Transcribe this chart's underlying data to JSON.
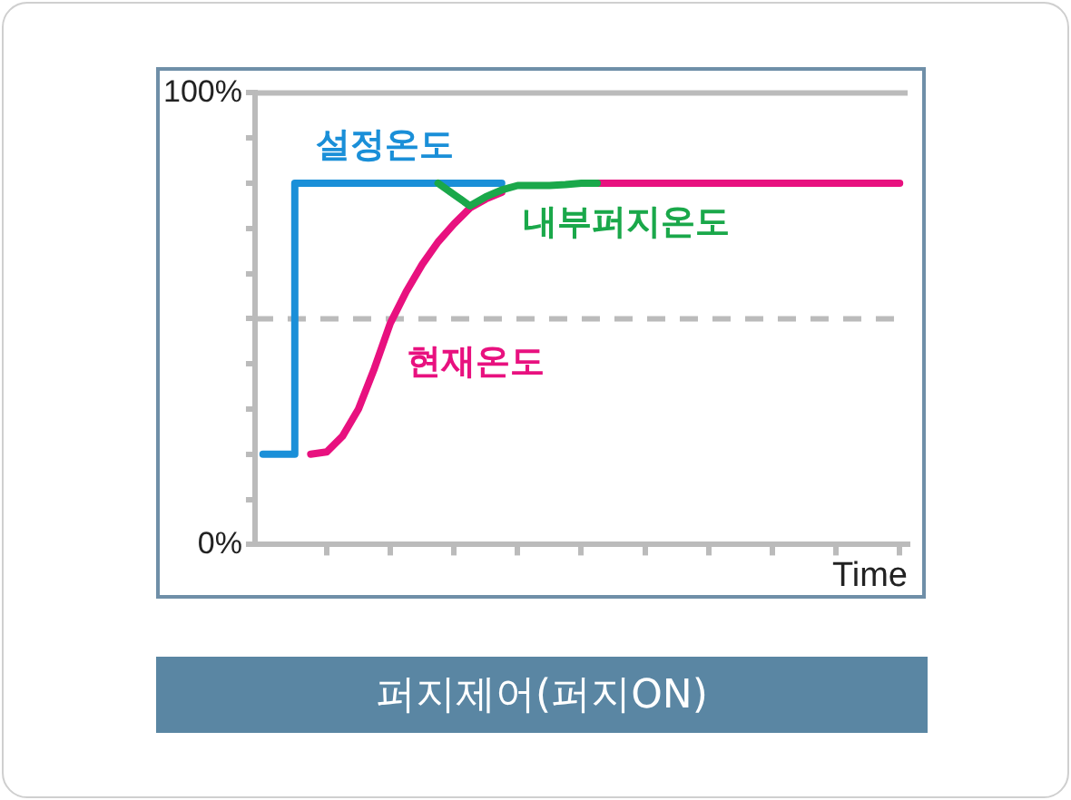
{
  "chart_data": {
    "type": "line",
    "title": "퍼지제어(퍼지ON)",
    "xlabel": "Time",
    "categories": [
      null,
      null,
      null,
      null,
      null,
      null,
      null,
      null,
      null,
      null,
      null,
      null,
      null,
      null,
      null,
      null,
      null,
      null,
      null,
      null,
      null,
      null,
      null,
      null,
      null,
      null,
      null,
      null,
      null,
      null,
      null,
      null,
      null,
      null,
      null,
      null,
      null,
      null,
      null,
      null,
      null
    ],
    "ylim": [
      0,
      100
    ],
    "yticks": [
      {
        "value": 0,
        "label": "0%"
      },
      {
        "value": 10,
        "label": null
      },
      {
        "value": 20,
        "label": null
      },
      {
        "value": 30,
        "label": null
      },
      {
        "value": 40,
        "label": null
      },
      {
        "value": 50,
        "label": null
      },
      {
        "value": 60,
        "label": null
      },
      {
        "value": 70,
        "label": null
      },
      {
        "value": 80,
        "label": null
      },
      {
        "value": 90,
        "label": null
      },
      {
        "value": 100,
        "label": "100%"
      }
    ],
    "tick_labels": "y",
    "grid": false,
    "legend": false,
    "marker": "none",
    "line_style": "solid",
    "ref_lines": [
      {
        "axis": "y",
        "value": 100,
        "color": "#bbbbbb",
        "line_style": "solid"
      },
      {
        "axis": "y",
        "value": 50,
        "color": "#bbbbbb",
        "line_style": "dashed"
      }
    ],
    "series": [
      {
        "name": "설정온도",
        "type": "step",
        "color": "#1a8fd8",
        "values": [
          20,
          20,
          20,
          80,
          80,
          80,
          80,
          80,
          80,
          80,
          80,
          80,
          80,
          80,
          80,
          80,
          null,
          null,
          null,
          null,
          null,
          null,
          null,
          null,
          null,
          null,
          null,
          null,
          null,
          null,
          null,
          null,
          null,
          null,
          null,
          null,
          null,
          null,
          null,
          null,
          null
        ]
      },
      {
        "name": "현재온도",
        "color": "#e8117f",
        "values": [
          null,
          null,
          null,
          20,
          20.5,
          24,
          30,
          39,
          49,
          56,
          62,
          67,
          71,
          74.5,
          76.5,
          78,
          null,
          null,
          null,
          null,
          null,
          80,
          80,
          80,
          80,
          80,
          80,
          80,
          80,
          80,
          80,
          80,
          80,
          80,
          80,
          80,
          80,
          80,
          80,
          80,
          80
        ]
      },
      {
        "name": "내부퍼지온도",
        "color": "#1aa84a",
        "values": [
          null,
          null,
          null,
          null,
          null,
          null,
          null,
          null,
          null,
          null,
          null,
          80,
          77.5,
          75,
          77,
          78.5,
          79.5,
          79.5,
          79.5,
          79.7,
          80,
          80,
          null,
          null,
          null,
          null,
          null,
          null,
          null,
          null,
          null,
          null,
          null,
          null,
          null,
          null,
          null,
          null,
          null,
          null,
          null
        ]
      }
    ]
  }
}
